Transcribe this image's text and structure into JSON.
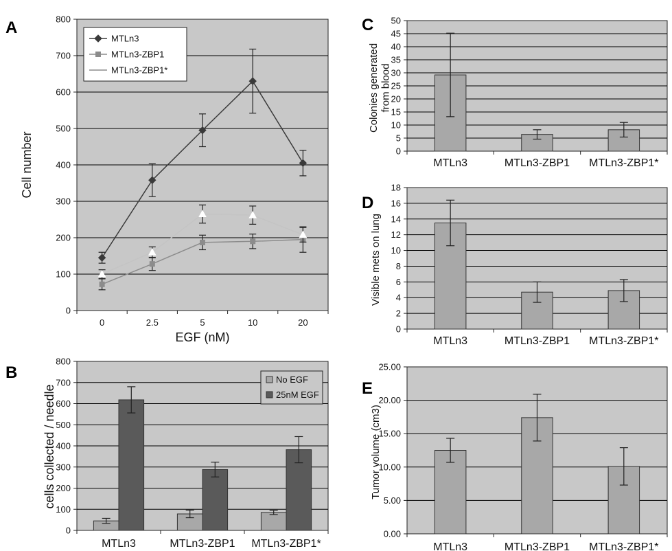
{
  "colors": {
    "plot_bg": "#c8c8c8",
    "grid": "#000000",
    "bar_light": "#a8a8a8",
    "bar_dark": "#5a5a5a",
    "line_mtln3": "#3a3a3a",
    "line_zbp1": "#8c8c8c",
    "line_zbp1s": "#c4c4c4",
    "legend_bg": "#ffffff"
  },
  "chart_data": [
    {
      "id": "A",
      "panel_label": "A",
      "type": "line",
      "x": [
        "0",
        "2.5",
        "5",
        "10",
        "20"
      ],
      "xlabel": "EGF (nM)",
      "ylabel": "Cell number",
      "ylim": [
        0,
        800
      ],
      "yticks": [
        "0",
        "100",
        "200",
        "300",
        "400",
        "500",
        "600",
        "700",
        "800"
      ],
      "grid": true,
      "legend": "top-left",
      "series": [
        {
          "name": "MTLn3",
          "values": [
            145,
            358,
            495,
            630,
            405
          ],
          "err": [
            15,
            45,
            45,
            88,
            35
          ],
          "marker": "diamond",
          "color_key": "line_mtln3"
        },
        {
          "name": "MTLn3-ZBP1",
          "values": [
            72,
            128,
            187,
            190,
            195
          ],
          "err": [
            15,
            18,
            20,
            20,
            35
          ],
          "marker": "square",
          "color_key": "line_zbp1"
        },
        {
          "name": "MTLn3-ZBP1*",
          "values": [
            100,
            160,
            265,
            262,
            208
          ],
          "err": [
            12,
            15,
            25,
            25,
            20
          ],
          "marker": "triangle",
          "color_key": "line_zbp1s"
        }
      ]
    },
    {
      "id": "B",
      "panel_label": "B",
      "type": "bar",
      "categories": [
        "MTLn3",
        "MTLn3-ZBP1",
        "MTLn3-ZBP1*"
      ],
      "ylabel": "cells collected / needle",
      "ylim": [
        0,
        800
      ],
      "yticks": [
        "0",
        "100",
        "200",
        "300",
        "400",
        "500",
        "600",
        "700",
        "800"
      ],
      "grid": true,
      "legend": "top-right",
      "series": [
        {
          "name": "No EGF",
          "values": [
            45,
            78,
            85
          ],
          "err": [
            12,
            18,
            10
          ],
          "color_key": "bar_light"
        },
        {
          "name": "25nM EGF",
          "values": [
            618,
            288,
            382
          ],
          "err": [
            62,
            35,
            62
          ],
          "color_key": "bar_dark"
        }
      ]
    },
    {
      "id": "C",
      "panel_label": "C",
      "type": "bar",
      "categories": [
        "MTLn3",
        "MTLn3-ZBP1",
        "MTLn3-ZBP1*"
      ],
      "ylabel": "Colonies generated from blood",
      "ylim": [
        0,
        50
      ],
      "yticks": [
        "0",
        "5",
        "10",
        "15",
        "20",
        "25",
        "30",
        "35",
        "40",
        "45",
        "50"
      ],
      "grid": true,
      "series": [
        {
          "values": [
            29.2,
            6.4,
            8.2
          ],
          "err": [
            16,
            1.8,
            2.8
          ],
          "color_key": "bar_light"
        }
      ]
    },
    {
      "id": "D",
      "panel_label": "D",
      "type": "bar",
      "categories": [
        "MTLn3",
        "MTLn3-ZBP1",
        "MTLn3-ZBP1*"
      ],
      "ylabel": "Visible mets on lung",
      "ylim": [
        0,
        18
      ],
      "yticks": [
        "0",
        "2",
        "4",
        "6",
        "8",
        "10",
        "12",
        "14",
        "16",
        "18"
      ],
      "grid": true,
      "series": [
        {
          "values": [
            13.5,
            4.7,
            4.9
          ],
          "err": [
            2.9,
            1.3,
            1.4
          ],
          "color_key": "bar_light"
        }
      ]
    },
    {
      "id": "E",
      "panel_label": "E",
      "type": "bar",
      "categories": [
        "MTLn3",
        "MTLn3-ZBP1",
        "MTLn3-ZBP1*"
      ],
      "ylabel": "Tumor volume (cm3)",
      "ylim": [
        0,
        25
      ],
      "yticks": [
        "0.00",
        "5.00",
        "10.00",
        "15.00",
        "20.00",
        "25.00"
      ],
      "grid": true,
      "series": [
        {
          "values": [
            12.5,
            17.4,
            10.1
          ],
          "err": [
            1.8,
            3.5,
            2.8
          ],
          "color_key": "bar_light"
        }
      ]
    }
  ]
}
